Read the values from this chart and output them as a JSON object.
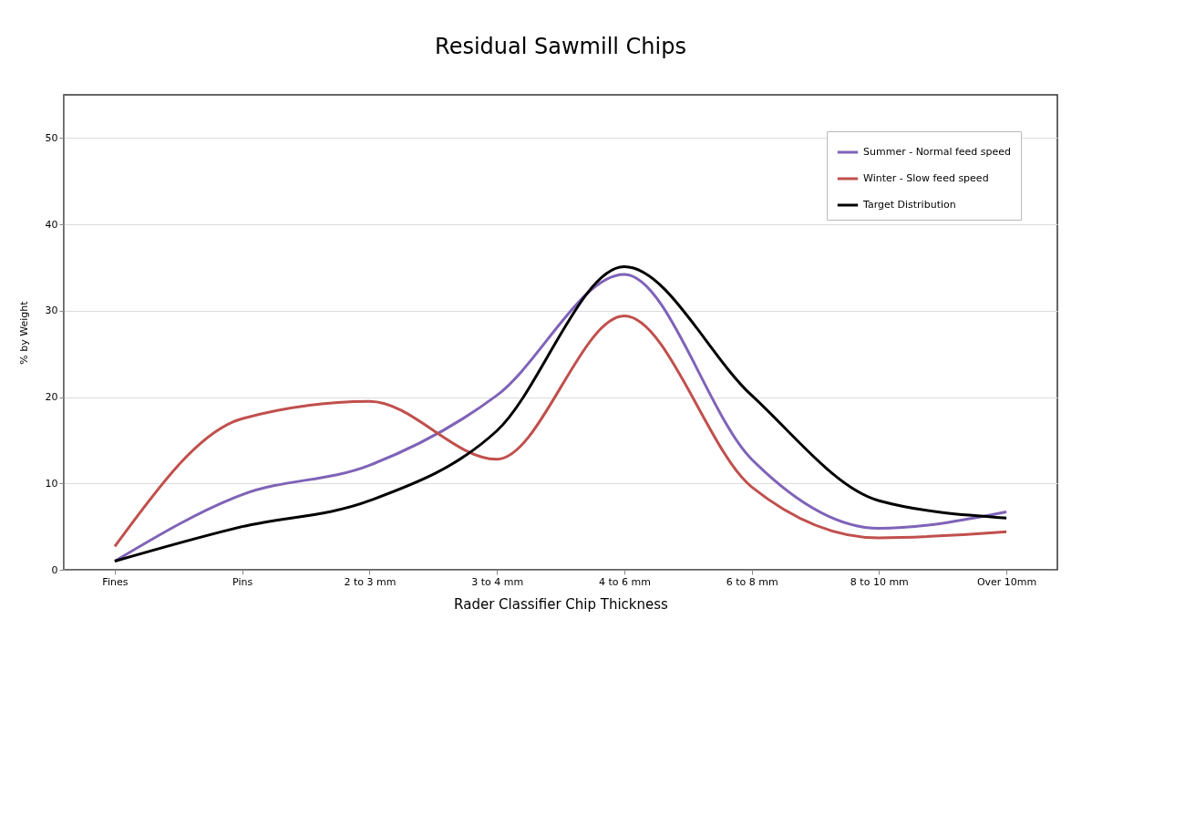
{
  "chart_data": {
    "type": "line",
    "title": "Residual Sawmill Chips",
    "xlabel": "Rader Classifier Chip Thickness",
    "ylabel": "% by Weight",
    "categories": [
      "Fines",
      "Pins",
      "2 to 3 mm",
      "3 to 4 mm",
      "4 to 6 mm",
      "6 to 8 mm",
      "8 to 10 mm",
      "Over 10mm"
    ],
    "series": [
      {
        "name": "Summer - Normal feed speed",
        "color": "#7f63b8",
        "values": [
          1.0,
          8.7,
          12.1,
          20.2,
          34.2,
          12.8,
          4.8,
          6.7
        ]
      },
      {
        "name": "Winter - Slow feed speed",
        "color": "#c0504d",
        "values": [
          2.7,
          17.5,
          19.5,
          12.8,
          29.4,
          9.6,
          3.7,
          4.4
        ]
      },
      {
        "name": "Target Distribution",
        "color": "#000000",
        "values": [
          1.0,
          5.0,
          8.0,
          16.1,
          35.1,
          20.2,
          8.0,
          6.0
        ]
      }
    ],
    "ylim": [
      0,
      55
    ],
    "yticks": [
      0,
      10,
      20,
      30,
      40,
      50
    ],
    "grid": "y",
    "legend": "top right"
  }
}
